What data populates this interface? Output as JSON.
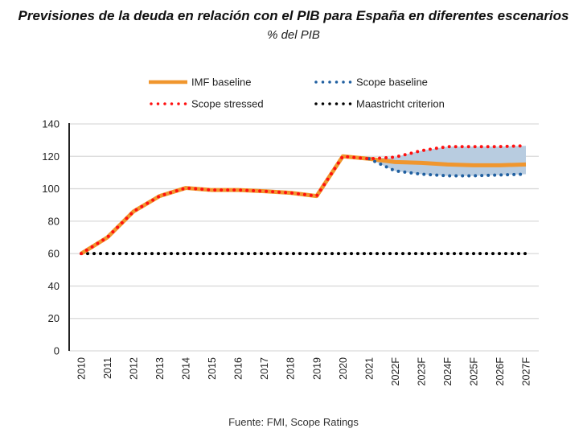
{
  "chart_data": {
    "type": "line",
    "title": "Previsiones de la deuda en relación con el PIB para España en diferentes escenarios",
    "subtitle": "% del PIB",
    "source": "Fuente: FMI, Scope Ratings",
    "xlabel": "",
    "ylabel": "",
    "ylim": [
      0,
      140
    ],
    "yticks": [
      "0",
      "20",
      "40",
      "60",
      "80",
      "100",
      "120",
      "140"
    ],
    "ytick_values": [
      0,
      20,
      40,
      60,
      80,
      100,
      120,
      140
    ],
    "grid": true,
    "legend_position": "top",
    "categories": [
      "2010",
      "2011",
      "2012",
      "2013",
      "2014",
      "2015",
      "2016",
      "2017",
      "2018",
      "2019",
      "2020",
      "2021",
      "2022F",
      "2023F",
      "2024F",
      "2025F",
      "2026F",
      "2027F"
    ],
    "series": [
      {
        "name": "IMF baseline",
        "style": "solid",
        "color": "#f0962e",
        "values": [
          60,
          70,
          86,
          95.5,
          100.5,
          99.2,
          99.2,
          98.5,
          97.5,
          95.5,
          120,
          118.5,
          116.5,
          116,
          115,
          114.5,
          114.5,
          115
        ]
      },
      {
        "name": "Scope baseline",
        "style": "dotted",
        "color": "#1f5fa0",
        "values": [
          null,
          null,
          null,
          null,
          null,
          null,
          null,
          null,
          null,
          null,
          null,
          118.5,
          111,
          109,
          108,
          108,
          108.5,
          109
        ]
      },
      {
        "name": "Scope stressed",
        "style": "dotted",
        "color": "#ff1010",
        "values": [
          60,
          70,
          86,
          95.5,
          100.5,
          99.2,
          99.2,
          98.5,
          97.5,
          95.5,
          120,
          118.5,
          119.5,
          123.5,
          126,
          126,
          126,
          126.5
        ]
      },
      {
        "name": "Maastricht criterion",
        "style": "dotted",
        "color": "#000000",
        "values": [
          60,
          60,
          60,
          60,
          60,
          60,
          60,
          60,
          60,
          60,
          60,
          60,
          60,
          60,
          60,
          60,
          60,
          60
        ]
      }
    ],
    "shaded_band": {
      "between": [
        "Scope baseline",
        "Scope stressed"
      ],
      "color": "#b8cce0",
      "from_category": "2021",
      "to_category": "2027F"
    },
    "legend": [
      {
        "label": "IMF baseline",
        "style": "solid",
        "color": "#f0962e"
      },
      {
        "label": "Scope baseline",
        "style": "dotted",
        "color": "#1f5fa0"
      },
      {
        "label": "Scope stressed",
        "style": "dotted",
        "color": "#ff1010"
      },
      {
        "label": "Maastricht criterion",
        "style": "dotted",
        "color": "#000000"
      }
    ]
  }
}
